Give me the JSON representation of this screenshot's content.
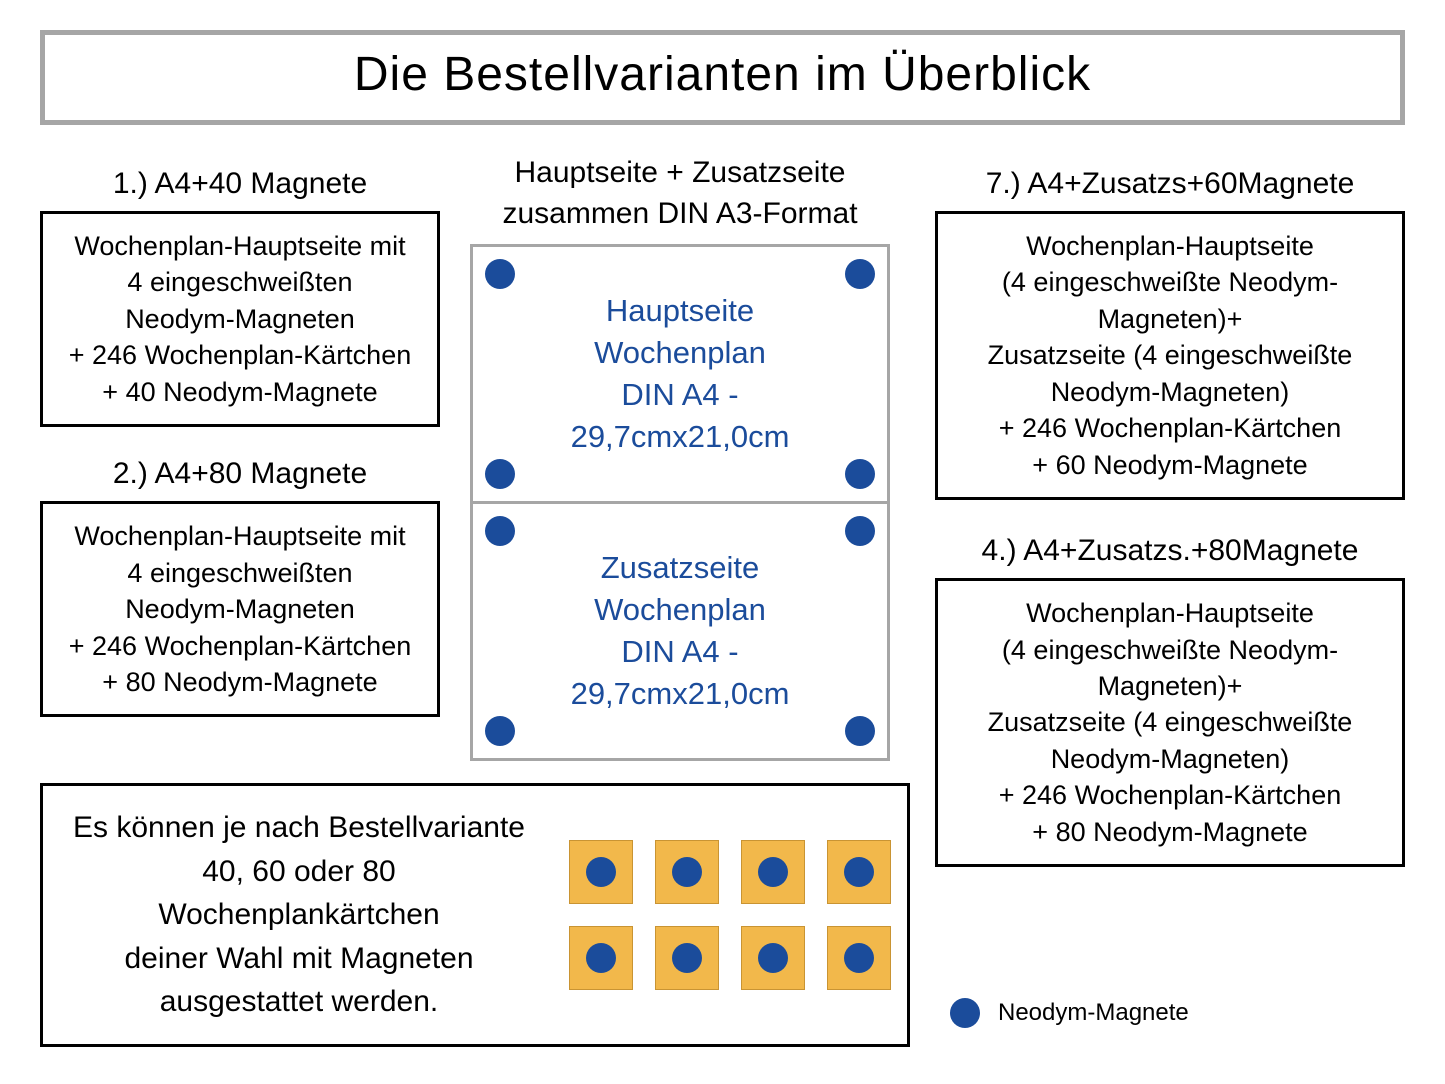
{
  "colors": {
    "title_border": "#a6a6a6",
    "box_border": "#000000",
    "din_border": "#a6a6a6",
    "magnet": "#1b4c9b",
    "card_bg": "#f2b84b",
    "card_border": "#c99433",
    "text": "#000000",
    "din_text": "#1b4c9b",
    "background": "#ffffff"
  },
  "fontsizes": {
    "title": 48,
    "heading": 30,
    "box_text": 27,
    "din_text": 31,
    "info_text": 30,
    "legend": 24
  },
  "title": "Die Bestellvarianten im Überblick",
  "left": {
    "variant1": {
      "heading": "1.) A4+40 Magnete",
      "l1": "Wochenplan-Hauptseite mit",
      "l2": "4 eingeschweißten",
      "l3": "Neodym-Magneten",
      "l4": "+ 246 Wochenplan-Kärtchen",
      "l5": "+ 40 Neodym-Magnete"
    },
    "variant2": {
      "heading": "2.) A4+80 Magnete",
      "l1": "Wochenplan-Hauptseite mit",
      "l2": "4 eingeschweißten",
      "l3": "Neodym-Magneten",
      "l4": "+ 246 Wochenplan-Kärtchen",
      "l5": "+ 80 Neodym-Magnete"
    }
  },
  "center": {
    "heading_l1": "Hauptseite + Zusatzseite",
    "heading_l2": "zusammen DIN A3-Format",
    "din_main": {
      "l1": "Hauptseite",
      "l2": "Wochenplan",
      "l3": "DIN A4 -",
      "l4": "29,7cmx21,0cm"
    },
    "din_extra": {
      "l1": "Zusatzseite",
      "l2": "Wochenplan",
      "l3": "DIN A4 -",
      "l4": "29,7cmx21,0cm"
    }
  },
  "info": {
    "l1": "Es können je nach Bestellvariante",
    "l2": "40, 60 oder 80 Wochenplankärtchen",
    "l3": "deiner Wahl mit Magneten",
    "l4": "ausgestattet werden.",
    "card_rows": 2,
    "card_cols": 4
  },
  "right": {
    "variant7": {
      "heading": "7.) A4+Zusatzs+60Magnete",
      "l1": "Wochenplan-Hauptseite",
      "l2": "(4 eingeschweißte Neodym-",
      "l3": "Magneten)+",
      "l4": "Zusatzseite (4 eingeschweißte",
      "l5": "Neodym-Magneten)",
      "l6": "+ 246 Wochenplan-Kärtchen",
      "l7": "+ 60 Neodym-Magnete"
    },
    "variant4": {
      "heading": "4.) A4+Zusatzs.+80Magnete",
      "l1": "Wochenplan-Hauptseite",
      "l2": "(4 eingeschweißte Neodym-",
      "l3": "Magneten)+",
      "l4": "Zusatzseite (4 eingeschweißte",
      "l5": "Neodym-Magneten)",
      "l6": "+ 246 Wochenplan-Kärtchen",
      "l7": "+ 80 Neodym-Magnete"
    }
  },
  "legend": "Neodym-Magnete"
}
